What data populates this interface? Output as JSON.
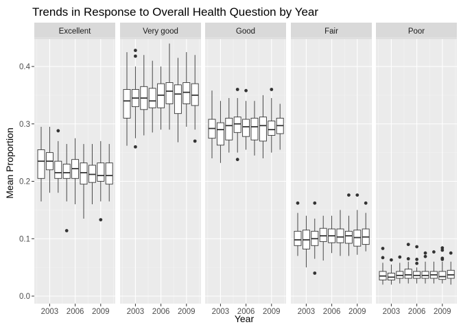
{
  "chart_data": {
    "type": "boxplot",
    "title": "Trends in Response to Overall Health Question by Year",
    "xlabel": "Year",
    "ylabel": "Mean Proportion",
    "ylim": [
      0.0,
      0.45
    ],
    "yticks": [
      0.0,
      0.1,
      0.2,
      0.3,
      0.4
    ],
    "ytick_labels": [
      "0.0",
      "0.1",
      "0.2",
      "0.3",
      "0.4"
    ],
    "x_years": [
      2002,
      2003,
      2004,
      2005,
      2006,
      2007,
      2008,
      2009,
      2010
    ],
    "xtick_labels": [
      "2003",
      "2006",
      "2009"
    ],
    "xticks": [
      2003,
      2006,
      2009
    ],
    "grid": true,
    "panels": [
      {
        "label": "Excellent",
        "boxes": [
          {
            "year": 2002,
            "lo": 0.165,
            "q1": 0.205,
            "med": 0.235,
            "q3": 0.255,
            "hi": 0.295,
            "outliers": []
          },
          {
            "year": 2003,
            "lo": 0.18,
            "q1": 0.22,
            "med": 0.235,
            "q3": 0.25,
            "hi": 0.295,
            "outliers": []
          },
          {
            "year": 2004,
            "lo": 0.18,
            "q1": 0.205,
            "med": 0.215,
            "q3": 0.235,
            "hi": 0.27,
            "outliers": [
              0.288
            ]
          },
          {
            "year": 2005,
            "lo": 0.165,
            "q1": 0.205,
            "med": 0.215,
            "q3": 0.23,
            "hi": 0.265,
            "outliers": [
              0.114
            ]
          },
          {
            "year": 2006,
            "lo": 0.16,
            "q1": 0.205,
            "med": 0.222,
            "q3": 0.238,
            "hi": 0.275,
            "outliers": []
          },
          {
            "year": 2007,
            "lo": 0.135,
            "q1": 0.195,
            "med": 0.215,
            "q3": 0.232,
            "hi": 0.265,
            "outliers": []
          },
          {
            "year": 2008,
            "lo": 0.16,
            "q1": 0.198,
            "med": 0.212,
            "q3": 0.228,
            "hi": 0.265,
            "outliers": []
          },
          {
            "year": 2009,
            "lo": 0.165,
            "q1": 0.2,
            "med": 0.21,
            "q3": 0.232,
            "hi": 0.27,
            "outliers": [
              0.133
            ]
          },
          {
            "year": 2010,
            "lo": 0.165,
            "q1": 0.195,
            "med": 0.21,
            "q3": 0.232,
            "hi": 0.265,
            "outliers": []
          }
        ]
      },
      {
        "label": "Very good",
        "boxes": [
          {
            "year": 2002,
            "lo": 0.262,
            "q1": 0.31,
            "med": 0.34,
            "q3": 0.36,
            "hi": 0.425,
            "outliers": []
          },
          {
            "year": 2003,
            "lo": 0.275,
            "q1": 0.33,
            "med": 0.345,
            "q3": 0.36,
            "hi": 0.4,
            "outliers": [
              0.428,
              0.418,
              0.26
            ]
          },
          {
            "year": 2004,
            "lo": 0.28,
            "q1": 0.325,
            "med": 0.345,
            "q3": 0.365,
            "hi": 0.42,
            "outliers": []
          },
          {
            "year": 2005,
            "lo": 0.285,
            "q1": 0.328,
            "med": 0.34,
            "q3": 0.362,
            "hi": 0.41,
            "outliers": []
          },
          {
            "year": 2006,
            "lo": 0.29,
            "q1": 0.328,
            "med": 0.35,
            "q3": 0.37,
            "hi": 0.4,
            "outliers": []
          },
          {
            "year": 2007,
            "lo": 0.29,
            "q1": 0.335,
            "med": 0.357,
            "q3": 0.372,
            "hi": 0.44,
            "outliers": []
          },
          {
            "year": 2008,
            "lo": 0.268,
            "q1": 0.318,
            "med": 0.352,
            "q3": 0.368,
            "hi": 0.415,
            "outliers": []
          },
          {
            "year": 2009,
            "lo": 0.295,
            "q1": 0.335,
            "med": 0.355,
            "q3": 0.372,
            "hi": 0.425,
            "outliers": []
          },
          {
            "year": 2010,
            "lo": 0.29,
            "q1": 0.332,
            "med": 0.35,
            "q3": 0.37,
            "hi": 0.42,
            "outliers": [
              0.27
            ]
          }
        ]
      },
      {
        "label": "Good",
        "boxes": [
          {
            "year": 2002,
            "lo": 0.24,
            "q1": 0.275,
            "med": 0.292,
            "q3": 0.308,
            "hi": 0.358,
            "outliers": []
          },
          {
            "year": 2003,
            "lo": 0.232,
            "q1": 0.263,
            "med": 0.29,
            "q3": 0.302,
            "hi": 0.34,
            "outliers": []
          },
          {
            "year": 2004,
            "lo": 0.25,
            "q1": 0.272,
            "med": 0.297,
            "q3": 0.31,
            "hi": 0.345,
            "outliers": []
          },
          {
            "year": 2005,
            "lo": 0.25,
            "q1": 0.285,
            "med": 0.3,
            "q3": 0.312,
            "hi": 0.345,
            "outliers": [
              0.36,
              0.238
            ]
          },
          {
            "year": 2006,
            "lo": 0.255,
            "q1": 0.278,
            "med": 0.295,
            "q3": 0.308,
            "hi": 0.34,
            "outliers": [
              0.358
            ]
          },
          {
            "year": 2007,
            "lo": 0.245,
            "q1": 0.272,
            "med": 0.295,
            "q3": 0.31,
            "hi": 0.34,
            "outliers": []
          },
          {
            "year": 2008,
            "lo": 0.24,
            "q1": 0.27,
            "med": 0.297,
            "q3": 0.312,
            "hi": 0.35,
            "outliers": []
          },
          {
            "year": 2009,
            "lo": 0.25,
            "q1": 0.28,
            "med": 0.29,
            "q3": 0.305,
            "hi": 0.345,
            "outliers": [
              0.36
            ]
          },
          {
            "year": 2010,
            "lo": 0.255,
            "q1": 0.283,
            "med": 0.297,
            "q3": 0.31,
            "hi": 0.335,
            "outliers": []
          }
        ]
      },
      {
        "label": "Fair",
        "boxes": [
          {
            "year": 2002,
            "lo": 0.07,
            "q1": 0.088,
            "med": 0.098,
            "q3": 0.113,
            "hi": 0.145,
            "outliers": [
              0.162
            ]
          },
          {
            "year": 2003,
            "lo": 0.05,
            "q1": 0.082,
            "med": 0.098,
            "q3": 0.115,
            "hi": 0.14,
            "outliers": []
          },
          {
            "year": 2004,
            "lo": 0.065,
            "q1": 0.088,
            "med": 0.1,
            "q3": 0.113,
            "hi": 0.135,
            "outliers": [
              0.162,
              0.04
            ]
          },
          {
            "year": 2005,
            "lo": 0.062,
            "q1": 0.095,
            "med": 0.105,
            "q3": 0.118,
            "hi": 0.14,
            "outliers": []
          },
          {
            "year": 2006,
            "lo": 0.075,
            "q1": 0.093,
            "med": 0.105,
            "q3": 0.117,
            "hi": 0.14,
            "outliers": []
          },
          {
            "year": 2007,
            "lo": 0.07,
            "q1": 0.093,
            "med": 0.103,
            "q3": 0.117,
            "hi": 0.15,
            "outliers": []
          },
          {
            "year": 2008,
            "lo": 0.07,
            "q1": 0.092,
            "med": 0.105,
            "q3": 0.113,
            "hi": 0.14,
            "outliers": [
              0.176
            ]
          },
          {
            "year": 2009,
            "lo": 0.072,
            "q1": 0.087,
            "med": 0.102,
            "q3": 0.115,
            "hi": 0.15,
            "outliers": [
              0.176
            ]
          },
          {
            "year": 2010,
            "lo": 0.078,
            "q1": 0.09,
            "med": 0.103,
            "q3": 0.117,
            "hi": 0.145,
            "outliers": [
              0.162
            ]
          }
        ]
      },
      {
        "label": "Poor",
        "boxes": [
          {
            "year": 2002,
            "lo": 0.02,
            "q1": 0.028,
            "med": 0.035,
            "q3": 0.043,
            "hi": 0.058,
            "outliers": [
              0.083,
              0.067
            ]
          },
          {
            "year": 2003,
            "lo": 0.02,
            "q1": 0.028,
            "med": 0.033,
            "q3": 0.04,
            "hi": 0.055,
            "outliers": [
              0.063
            ]
          },
          {
            "year": 2004,
            "lo": 0.022,
            "q1": 0.031,
            "med": 0.036,
            "q3": 0.043,
            "hi": 0.058,
            "outliers": [
              0.068
            ]
          },
          {
            "year": 2005,
            "lo": 0.022,
            "q1": 0.031,
            "med": 0.037,
            "q3": 0.047,
            "hi": 0.06,
            "outliers": [
              0.09,
              0.065
            ]
          },
          {
            "year": 2006,
            "lo": 0.022,
            "q1": 0.031,
            "med": 0.036,
            "q3": 0.043,
            "hi": 0.05,
            "outliers": [
              0.086,
              0.064,
              0.057
            ]
          },
          {
            "year": 2007,
            "lo": 0.022,
            "q1": 0.031,
            "med": 0.036,
            "q3": 0.043,
            "hi": 0.06,
            "outliers": [
              0.075,
              0.069
            ]
          },
          {
            "year": 2008,
            "lo": 0.022,
            "q1": 0.031,
            "med": 0.037,
            "q3": 0.043,
            "hi": 0.06,
            "outliers": [
              0.077
            ]
          },
          {
            "year": 2009,
            "lo": 0.022,
            "q1": 0.029,
            "med": 0.034,
            "q3": 0.043,
            "hi": 0.06,
            "outliers": [
              0.084,
              0.08,
              0.066,
              0.064
            ]
          },
          {
            "year": 2010,
            "lo": 0.02,
            "q1": 0.031,
            "med": 0.037,
            "q3": 0.045,
            "hi": 0.06,
            "outliers": [
              0.075
            ]
          }
        ]
      }
    ]
  }
}
